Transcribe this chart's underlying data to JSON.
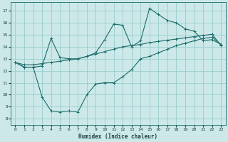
{
  "xlabel": "Humidex (Indice chaleur)",
  "bg_color": "#cce8e8",
  "grid_color": "#99cccc",
  "line_color": "#1a6b6b",
  "xlim": [
    -0.5,
    23.5
  ],
  "ylim": [
    7.5,
    17.7
  ],
  "xticks": [
    0,
    1,
    2,
    3,
    4,
    5,
    6,
    7,
    8,
    9,
    10,
    11,
    12,
    13,
    14,
    15,
    16,
    17,
    18,
    19,
    20,
    21,
    22,
    23
  ],
  "yticks": [
    8,
    9,
    10,
    11,
    12,
    13,
    14,
    15,
    16,
    17
  ],
  "line_max": {
    "x": [
      0,
      1,
      2,
      3,
      4,
      5,
      6,
      7,
      8,
      9,
      10,
      11,
      12,
      13,
      14,
      15,
      16,
      17,
      18,
      19,
      20,
      21,
      22,
      23
    ],
    "y": [
      12.7,
      12.3,
      12.3,
      12.4,
      14.7,
      13.1,
      13.0,
      13.0,
      13.2,
      13.5,
      14.6,
      15.9,
      15.8,
      14.0,
      14.5,
      17.2,
      16.7,
      16.2,
      16.0,
      15.5,
      15.3,
      14.5,
      14.6,
      14.2
    ]
  },
  "line_mean": {
    "x": [
      0,
      1,
      2,
      3,
      4,
      5,
      6,
      7,
      8,
      9,
      10,
      11,
      12,
      13,
      14,
      15,
      16,
      17,
      18,
      19,
      20,
      21,
      22,
      23
    ],
    "y": [
      12.7,
      12.5,
      12.5,
      12.6,
      12.7,
      12.8,
      12.9,
      13.0,
      13.2,
      13.4,
      13.6,
      13.8,
      14.0,
      14.1,
      14.2,
      14.35,
      14.45,
      14.55,
      14.65,
      14.75,
      14.85,
      14.95,
      15.05,
      14.1
    ]
  },
  "line_min": {
    "x": [
      0,
      1,
      2,
      3,
      4,
      5,
      6,
      7,
      8,
      9,
      10,
      11,
      12,
      13,
      14,
      15,
      16,
      17,
      18,
      19,
      20,
      21,
      22,
      23
    ],
    "y": [
      12.7,
      12.3,
      12.3,
      9.8,
      8.65,
      8.55,
      8.65,
      8.55,
      10.0,
      10.9,
      11.0,
      11.0,
      11.5,
      12.1,
      13.0,
      13.2,
      13.5,
      13.8,
      14.1,
      14.3,
      14.5,
      14.7,
      14.8,
      14.2
    ]
  }
}
